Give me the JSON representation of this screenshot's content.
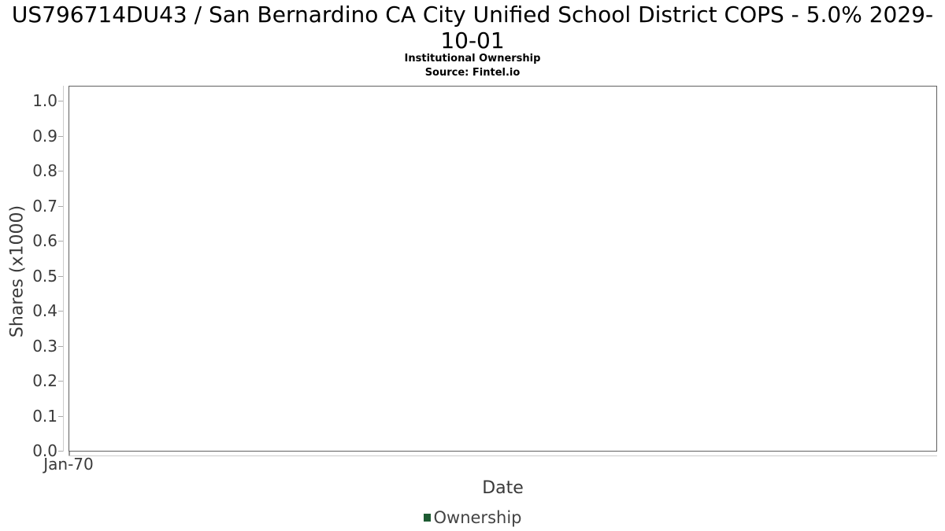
{
  "chart_data": {
    "type": "line",
    "title": "US796714DU43 / San Bernardino CA City Unified School District COPS - 5.0% 2029-10-01",
    "title_lines": [
      "US796714DU43 / San Bernardino CA City Unified School District COPS - 5.0% 2029-",
      "10-01"
    ],
    "subtitle": "Institutional Ownership",
    "source": "Source: Fintel.io",
    "xlabel": "Date",
    "ylabel": "Shares (x1000)",
    "x_ticks": [
      "Jan-70"
    ],
    "y_ticks": [
      "0.0",
      "0.1",
      "0.2",
      "0.3",
      "0.4",
      "0.5",
      "0.6",
      "0.7",
      "0.8",
      "0.9",
      "1.0"
    ],
    "ylim": [
      0.0,
      1.05
    ],
    "grid": true,
    "legend": {
      "position": "bottom",
      "entries": [
        {
          "label": "Ownership",
          "color": "#1d5b32",
          "marker": "square"
        }
      ]
    },
    "series": [
      {
        "name": "Ownership",
        "x": [],
        "values": []
      }
    ],
    "colors": {
      "title_text": "#000000",
      "axis_text": "#3a3a3a",
      "plot_border": "#606060",
      "gridline": "#e7e7e7",
      "axis_line": "#cccccc",
      "tick_mark": "#aaaaaa",
      "series_ownership": "#1d5b32",
      "background": "#ffffff"
    }
  }
}
